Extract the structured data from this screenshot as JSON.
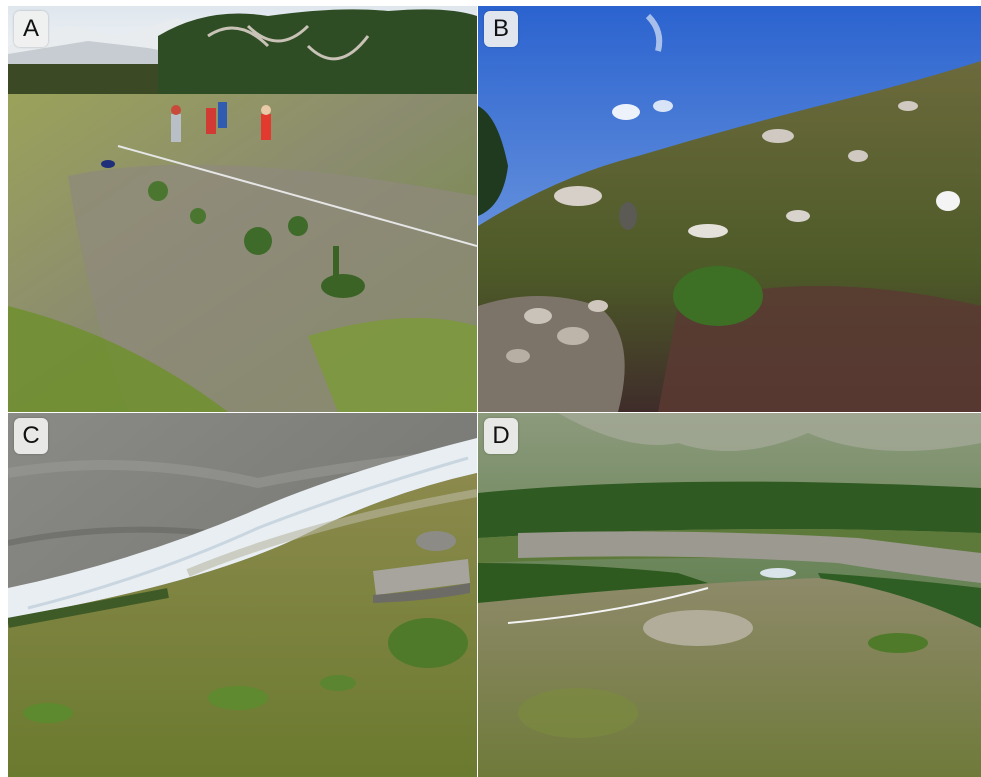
{
  "figure": {
    "panels": [
      {
        "label": "A",
        "description_icon": "field-site-photo"
      },
      {
        "label": "B",
        "description_icon": "rocky-slope-photo"
      },
      {
        "label": "C",
        "description_icon": "glacier-slope-photo"
      },
      {
        "label": "D",
        "description_icon": "valley-transect-photo"
      }
    ]
  },
  "colors": {
    "label_background": "#f0f0f0",
    "label_text": "#111111",
    "sky_blue": "#3f74d6",
    "moss_green": "#6f7a2c",
    "glacier_white": "#e8eef2"
  }
}
